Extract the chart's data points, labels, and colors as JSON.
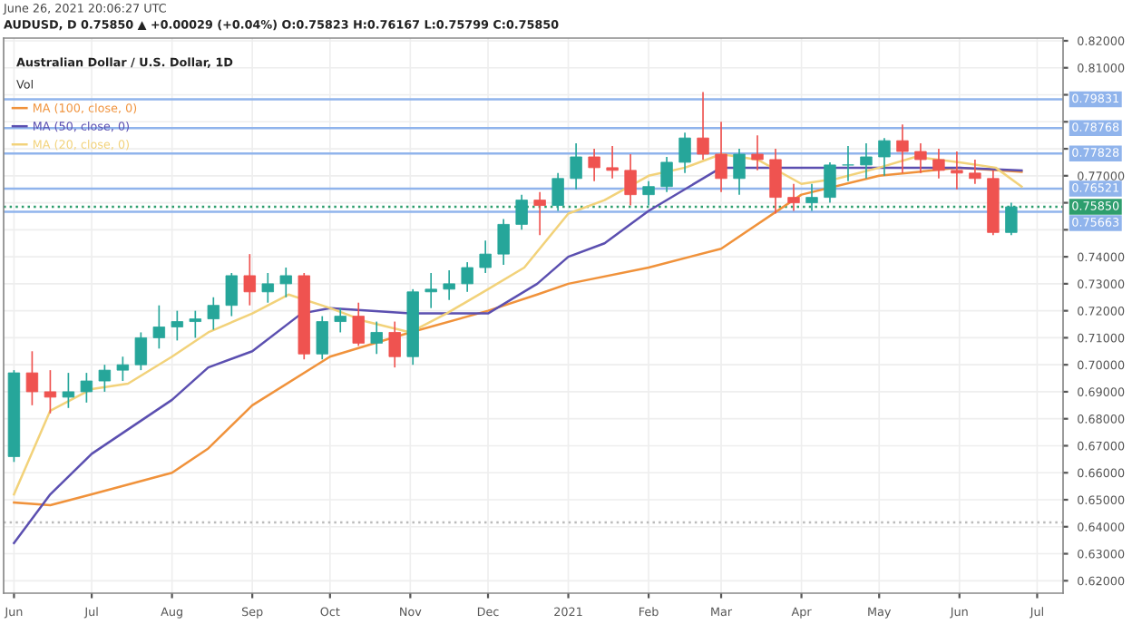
{
  "chart_data": {
    "type": "candlestick",
    "title": "Australian Dollar / U.S. Dollar, 1D",
    "annotations": [
      "June 26, 2021 20:06:27 UTC",
      "AUDUSD, D 0.75850 ▲ +0.00029 (+0.04%) O:0.75823 H:0.76167 L:0.75799 C:0.75850",
      "Vol"
    ],
    "x": [
      "2020-06-01",
      "2020-06-08",
      "2020-06-15",
      "2020-06-22",
      "2020-06-29",
      "2020-07-06",
      "2020-07-13",
      "2020-07-20",
      "2020-07-27",
      "2020-08-03",
      "2020-08-10",
      "2020-08-17",
      "2020-08-24",
      "2020-08-31",
      "2020-09-07",
      "2020-09-14",
      "2020-09-21",
      "2020-09-28",
      "2020-10-05",
      "2020-10-12",
      "2020-10-19",
      "2020-10-26",
      "2020-11-02",
      "2020-11-09",
      "2020-11-16",
      "2020-11-23",
      "2020-11-30",
      "2020-12-07",
      "2020-12-14",
      "2020-12-21",
      "2020-12-28",
      "2021-01-04",
      "2021-01-11",
      "2021-01-18",
      "2021-01-25",
      "2021-02-01",
      "2021-02-08",
      "2021-02-15",
      "2021-02-22",
      "2021-03-01",
      "2021-03-08",
      "2021-03-15",
      "2021-03-22",
      "2021-03-29",
      "2021-04-05",
      "2021-04-12",
      "2021-04-19",
      "2021-04-26",
      "2021-05-03",
      "2021-05-10",
      "2021-05-17",
      "2021-05-24",
      "2021-05-31",
      "2021-06-07",
      "2021-06-14",
      "2021-06-21"
    ],
    "ohlc": [
      [
        0.666,
        0.698,
        0.664,
        0.697
      ],
      [
        0.697,
        0.705,
        0.685,
        0.69
      ],
      [
        0.69,
        0.698,
        0.682,
        0.688
      ],
      [
        0.688,
        0.697,
        0.684,
        0.69
      ],
      [
        0.69,
        0.697,
        0.686,
        0.694
      ],
      [
        0.694,
        0.7,
        0.69,
        0.698
      ],
      [
        0.698,
        0.703,
        0.694,
        0.7
      ],
      [
        0.7,
        0.712,
        0.698,
        0.71
      ],
      [
        0.71,
        0.722,
        0.706,
        0.714
      ],
      [
        0.714,
        0.72,
        0.709,
        0.716
      ],
      [
        0.716,
        0.72,
        0.71,
        0.717
      ],
      [
        0.717,
        0.725,
        0.713,
        0.722
      ],
      [
        0.722,
        0.734,
        0.718,
        0.733
      ],
      [
        0.733,
        0.741,
        0.722,
        0.727
      ],
      [
        0.727,
        0.734,
        0.723,
        0.73
      ],
      [
        0.73,
        0.736,
        0.725,
        0.733
      ],
      [
        0.733,
        0.734,
        0.702,
        0.704
      ],
      [
        0.704,
        0.718,
        0.702,
        0.716
      ],
      [
        0.716,
        0.721,
        0.712,
        0.718
      ],
      [
        0.718,
        0.723,
        0.707,
        0.708
      ],
      [
        0.708,
        0.716,
        0.704,
        0.712
      ],
      [
        0.712,
        0.716,
        0.699,
        0.703
      ],
      [
        0.703,
        0.728,
        0.7,
        0.727
      ],
      [
        0.727,
        0.734,
        0.721,
        0.728
      ],
      [
        0.728,
        0.735,
        0.724,
        0.73
      ],
      [
        0.73,
        0.738,
        0.727,
        0.736
      ],
      [
        0.736,
        0.746,
        0.734,
        0.741
      ],
      [
        0.741,
        0.754,
        0.737,
        0.752
      ],
      [
        0.752,
        0.763,
        0.75,
        0.761
      ],
      [
        0.761,
        0.764,
        0.748,
        0.759
      ],
      [
        0.759,
        0.771,
        0.757,
        0.769
      ],
      [
        0.769,
        0.782,
        0.765,
        0.777
      ],
      [
        0.777,
        0.78,
        0.768,
        0.773
      ],
      [
        0.773,
        0.781,
        0.769,
        0.772
      ],
      [
        0.772,
        0.778,
        0.759,
        0.763
      ],
      [
        0.763,
        0.768,
        0.759,
        0.766
      ],
      [
        0.766,
        0.777,
        0.764,
        0.775
      ],
      [
        0.775,
        0.786,
        0.771,
        0.784
      ],
      [
        0.784,
        0.801,
        0.776,
        0.778
      ],
      [
        0.778,
        0.79,
        0.764,
        0.769
      ],
      [
        0.769,
        0.78,
        0.763,
        0.778
      ],
      [
        0.778,
        0.785,
        0.772,
        0.776
      ],
      [
        0.776,
        0.78,
        0.756,
        0.762
      ],
      [
        0.762,
        0.767,
        0.757,
        0.76
      ],
      [
        0.76,
        0.767,
        0.757,
        0.762
      ],
      [
        0.762,
        0.775,
        0.76,
        0.774
      ],
      [
        0.774,
        0.781,
        0.768,
        0.774
      ],
      [
        0.774,
        0.782,
        0.769,
        0.777
      ],
      [
        0.777,
        0.784,
        0.77,
        0.783
      ],
      [
        0.783,
        0.789,
        0.771,
        0.779
      ],
      [
        0.779,
        0.782,
        0.771,
        0.776
      ],
      [
        0.776,
        0.78,
        0.769,
        0.772
      ],
      [
        0.772,
        0.779,
        0.765,
        0.771
      ],
      [
        0.771,
        0.776,
        0.767,
        0.769
      ],
      [
        0.769,
        0.772,
        0.748,
        0.749
      ],
      [
        0.749,
        0.76,
        0.748,
        0.7585
      ]
    ],
    "series": [
      {
        "name": "MA (100, close, 0)",
        "type": "line",
        "color": "#f0923b",
        "x": [
          "2020-06-01",
          "2020-06-15",
          "2020-07-01",
          "2020-08-01",
          "2020-08-15",
          "2020-09-01",
          "2020-10-01",
          "2020-11-01",
          "2020-12-01",
          "2020-12-20",
          "2021-01-01",
          "2021-02-01",
          "2021-03-01",
          "2021-04-01",
          "2021-05-01",
          "2021-06-01",
          "2021-06-25"
        ],
        "values": [
          0.649,
          0.648,
          0.652,
          0.66,
          0.669,
          0.685,
          0.703,
          0.712,
          0.72,
          0.726,
          0.73,
          0.736,
          0.743,
          0.763,
          0.77,
          0.773,
          0.7715
        ]
      },
      {
        "name": "MA (50, close, 0)",
        "type": "line",
        "color": "#5b4fb0",
        "x": [
          "2020-06-01",
          "2020-06-15",
          "2020-07-01",
          "2020-08-01",
          "2020-08-15",
          "2020-09-01",
          "2020-09-20",
          "2020-10-01",
          "2020-11-01",
          "2020-12-01",
          "2020-12-20",
          "2021-01-01",
          "2021-01-15",
          "2021-02-01",
          "2021-03-01",
          "2021-04-01",
          "2021-05-01",
          "2021-06-01",
          "2021-06-25"
        ],
        "values": [
          0.634,
          0.652,
          0.667,
          0.687,
          0.699,
          0.705,
          0.719,
          0.721,
          0.719,
          0.719,
          0.73,
          0.74,
          0.745,
          0.757,
          0.773,
          0.773,
          0.773,
          0.773,
          0.772
        ]
      },
      {
        "name": "MA (20, close, 0)",
        "type": "line",
        "color": "#f2d27a",
        "x": [
          "2020-06-01",
          "2020-06-15",
          "2020-07-01",
          "2020-07-15",
          "2020-08-01",
          "2020-08-15",
          "2020-09-01",
          "2020-09-15",
          "2020-10-01",
          "2020-10-15",
          "2020-11-01",
          "2020-11-15",
          "2020-12-01",
          "2020-12-15",
          "2021-01-01",
          "2021-01-15",
          "2021-02-01",
          "2021-02-15",
          "2021-03-01",
          "2021-03-15",
          "2021-04-01",
          "2021-04-15",
          "2021-05-01",
          "2021-05-15",
          "2021-06-01",
          "2021-06-15",
          "2021-06-25"
        ],
        "values": [
          0.652,
          0.683,
          0.691,
          0.693,
          0.703,
          0.712,
          0.719,
          0.726,
          0.721,
          0.716,
          0.712,
          0.719,
          0.728,
          0.736,
          0.756,
          0.761,
          0.77,
          0.773,
          0.778,
          0.776,
          0.767,
          0.769,
          0.773,
          0.777,
          0.775,
          0.773,
          0.766
        ]
      }
    ],
    "ref_lines": [
      {
        "axis": "y",
        "value": 0.79831,
        "label": "0.79831",
        "color": "#90b4ec",
        "line_style": "solid"
      },
      {
        "axis": "y",
        "value": 0.78768,
        "label": "0.78768",
        "color": "#90b4ec",
        "line_style": "solid"
      },
      {
        "axis": "y",
        "value": 0.77828,
        "label": "0.77828",
        "color": "#90b4ec",
        "line_style": "solid"
      },
      {
        "axis": "y",
        "value": 0.76521,
        "label": "0.76521",
        "color": "#90b4ec",
        "line_style": "solid"
      },
      {
        "axis": "y",
        "value": 0.75663,
        "label": "0.75663",
        "color": "#90b4ec",
        "line_style": "solid"
      },
      {
        "axis": "y",
        "value": 0.7585,
        "label": "0.75850",
        "color": "#2e9e6e",
        "line_style": "dotted"
      },
      {
        "axis": "y",
        "value": 0.6416,
        "label": null,
        "color": "#bbbbbb",
        "line_style": "dotted"
      }
    ],
    "xlim": [
      "2020-05-28",
      "2021-07-11"
    ],
    "xticks": [
      {
        "value": "2020-06-01",
        "label": "Jun"
      },
      {
        "value": "2020-07-01",
        "label": "Jul"
      },
      {
        "value": "2020-08-01",
        "label": "Aug"
      },
      {
        "value": "2020-09-01",
        "label": "Sep"
      },
      {
        "value": "2020-10-01",
        "label": "Oct"
      },
      {
        "value": "2020-11-01",
        "label": "Nov"
      },
      {
        "value": "2020-12-01",
        "label": "Dec"
      },
      {
        "value": "2021-01-01",
        "label": "2021"
      },
      {
        "value": "2021-02-01",
        "label": "Feb"
      },
      {
        "value": "2021-03-01",
        "label": "Mar"
      },
      {
        "value": "2021-04-01",
        "label": "Apr"
      },
      {
        "value": "2021-05-01",
        "label": "May"
      },
      {
        "value": "2021-06-01",
        "label": "Jun"
      },
      {
        "value": "2021-07-01",
        "label": "Jul"
      }
    ],
    "ylim": [
      0.6154,
      0.821
    ],
    "yticks": [
      {
        "value": 0.62,
        "label": "0.62000"
      },
      {
        "value": 0.63,
        "label": "0.63000"
      },
      {
        "value": 0.64,
        "label": "0.64000"
      },
      {
        "value": 0.65,
        "label": "0.65000"
      },
      {
        "value": 0.66,
        "label": "0.66000"
      },
      {
        "value": 0.67,
        "label": "0.67000"
      },
      {
        "value": 0.68,
        "label": "0.68000"
      },
      {
        "value": 0.69,
        "label": "0.69000"
      },
      {
        "value": 0.7,
        "label": "0.70000"
      },
      {
        "value": 0.71,
        "label": "0.71000"
      },
      {
        "value": 0.72,
        "label": "0.72000"
      },
      {
        "value": 0.73,
        "label": "0.73000"
      },
      {
        "value": 0.74,
        "label": "0.74000"
      },
      {
        "value": 0.75,
        "label": null
      },
      {
        "value": 0.76,
        "label": null
      },
      {
        "value": 0.77,
        "label": "0.77000"
      },
      {
        "value": 0.78,
        "label": null
      },
      {
        "value": 0.79,
        "label": null
      },
      {
        "value": 0.8,
        "label": null
      },
      {
        "value": 0.81,
        "label": "0.81000"
      },
      {
        "value": 0.82,
        "label": "0.82000"
      }
    ],
    "grid": true,
    "legend": "top left"
  }
}
